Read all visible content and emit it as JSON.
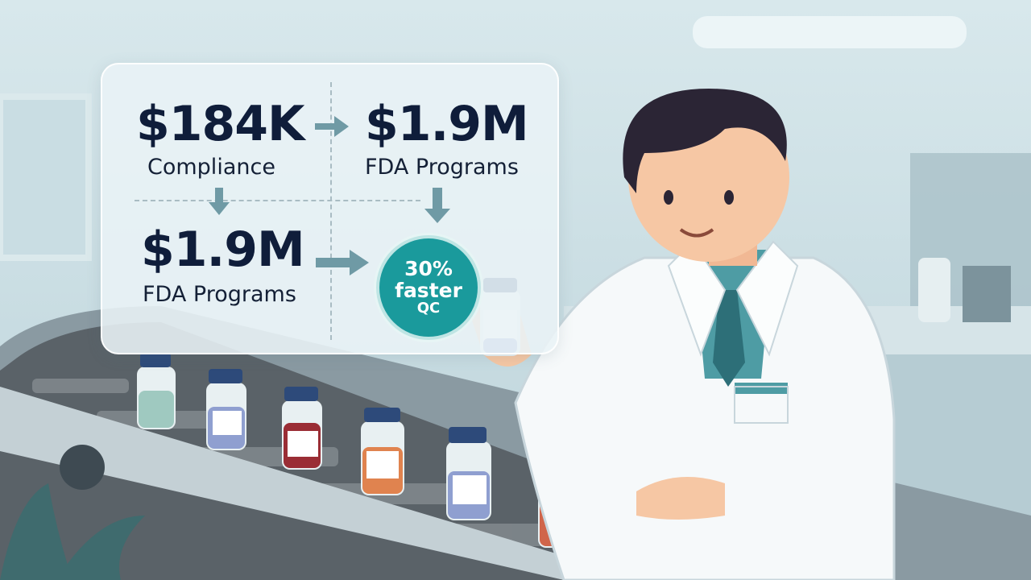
{
  "infographic": {
    "top_left": {
      "value": "$184K",
      "label": "Compliance"
    },
    "top_right": {
      "value": "$1.9M",
      "label": "FDA Programs"
    },
    "bottom_left": {
      "value": "$1.9M",
      "label": "FDA Programs"
    },
    "badge": {
      "line1": "30%",
      "line2": "faster",
      "line3": "QC"
    }
  },
  "colors": {
    "accent_teal": "#1a9a9c",
    "text_dark": "#0f1d3a",
    "arrow": "#6f9aa5",
    "vial_liquids": [
      "#9fc9c0",
      "#8f9fd0",
      "#9a2d35",
      "#e0834f",
      "#8f9fd0",
      "#d0654a"
    ]
  }
}
